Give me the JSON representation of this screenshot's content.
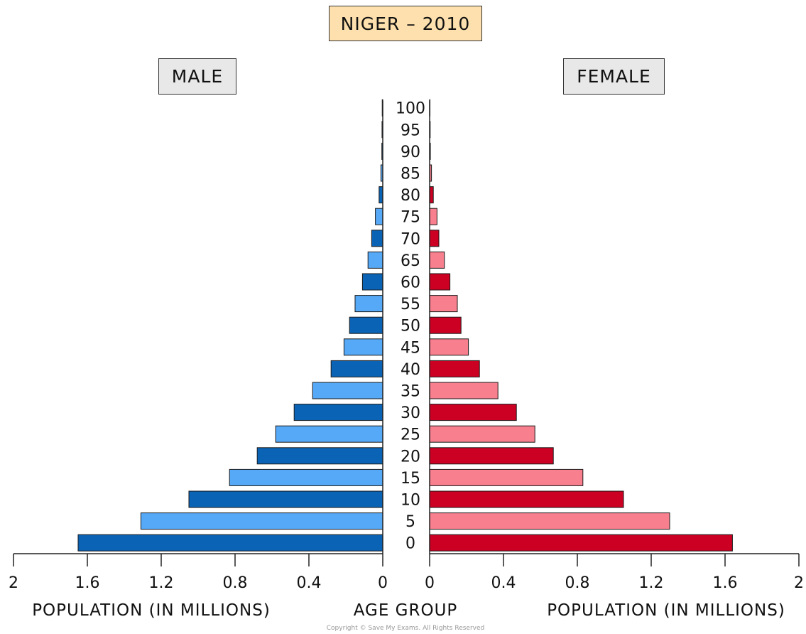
{
  "chart_data": {
    "type": "bar",
    "title": "NIGER – 2010",
    "left_header": "MALE",
    "right_header": "FEMALE",
    "center_label": "AGE GROUP",
    "left_xlabel": "POPULATION (IN MILLIONS)",
    "right_xlabel": "POPULATION (IN MILLIONS)",
    "xlim": [
      0,
      2
    ],
    "left_ticks": [
      "2",
      "1.6",
      "1.2",
      "0.8",
      "0.4",
      "0"
    ],
    "right_ticks": [
      "0",
      "0.4",
      "0.8",
      "1.2",
      "1.6",
      "2"
    ],
    "categories": [
      "0",
      "5",
      "10",
      "15",
      "20",
      "25",
      "30",
      "35",
      "40",
      "45",
      "50",
      "55",
      "60",
      "65",
      "70",
      "75",
      "80",
      "85",
      "90",
      "95",
      "100"
    ],
    "series": [
      {
        "name": "MALE",
        "values": [
          1.65,
          1.31,
          1.05,
          0.83,
          0.68,
          0.58,
          0.48,
          0.38,
          0.28,
          0.21,
          0.18,
          0.15,
          0.11,
          0.08,
          0.06,
          0.04,
          0.02,
          0.01,
          0.005,
          0.004,
          0.003
        ]
      },
      {
        "name": "FEMALE",
        "values": [
          1.64,
          1.3,
          1.05,
          0.83,
          0.67,
          0.57,
          0.47,
          0.37,
          0.27,
          0.21,
          0.17,
          0.15,
          0.11,
          0.08,
          0.05,
          0.04,
          0.02,
          0.01,
          0.004,
          0.003,
          0.002
        ]
      }
    ],
    "colors": {
      "male_dark": "#0a63b4",
      "male_light": "#56a9f7",
      "female_dark": "#cc0022",
      "female_light": "#f77f8e"
    }
  },
  "copyright": "Copyright © Save My Exams. All Rights Reserved"
}
